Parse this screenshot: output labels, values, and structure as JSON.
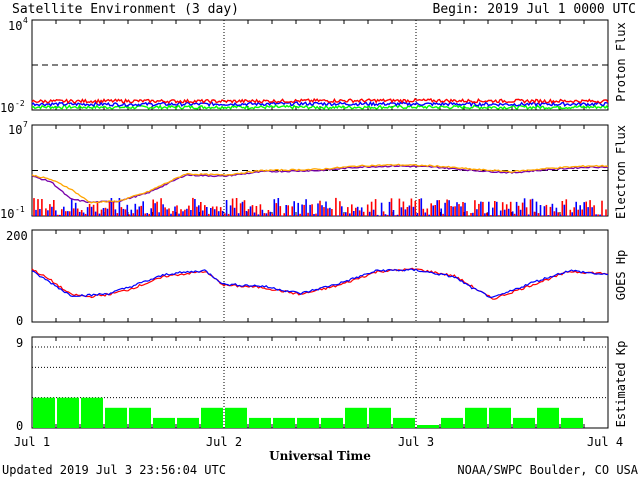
{
  "header": {
    "title": "Satellite Environment (3 day)",
    "begin": "Begin:  2019 Jul 1 0000 UTC"
  },
  "footer": {
    "updated": "Updated 2019 Jul  3 23:56:04 UTC",
    "source": "NOAA/SWPC Boulder, CO USA",
    "xlabel": "Universal Time"
  },
  "colors": {
    "red": "#ff0000",
    "blue": "#0000ff",
    "green": "#00ff00",
    "orange": "#ffa500",
    "purple": "#7700aa"
  },
  "chart_data": [
    {
      "type": "line",
      "ylabel": "Proton Flux",
      "yscale": "log",
      "ylim_exp": [
        -2,
        4
      ],
      "tick_labels": [
        "10",
        "4",
        "10",
        "-2"
      ],
      "threshold_exp": 1,
      "x_days": [
        0,
        3
      ],
      "series": [
        {
          "color": "#ff0000",
          "x": [
            0,
            0.5,
            1.0,
            1.5,
            2.0,
            2.5,
            3.0
          ],
          "y_exp": [
            -1.42,
            -1.4,
            -1.42,
            -1.38,
            -1.37,
            -1.4,
            -1.41
          ]
        },
        {
          "color": "#0000ff",
          "x": [
            0,
            0.5,
            1.0,
            1.5,
            2.0,
            2.5,
            3.0
          ],
          "y_exp": [
            -1.6,
            -1.62,
            -1.6,
            -1.58,
            -1.6,
            -1.62,
            -1.6
          ]
        },
        {
          "color": "#00ff00",
          "x": [
            0,
            0.5,
            1.0,
            1.5,
            2.0,
            2.5,
            3.0
          ],
          "y_exp": [
            -1.8,
            -1.82,
            -1.8,
            -1.82,
            -1.8,
            -1.82,
            -1.8
          ]
        }
      ]
    },
    {
      "type": "line",
      "ylabel": "Electron Flux",
      "yscale": "log",
      "ylim_exp": [
        -1,
        7
      ],
      "tick_labels": [
        "10",
        "7",
        "10",
        "-1"
      ],
      "threshold_exp": 3,
      "x_days": [
        0,
        3
      ],
      "series": [
        {
          "color": "#ffa500",
          "x": [
            0,
            0.1,
            0.2,
            0.3,
            0.45,
            0.6,
            0.8,
            1.0,
            1.2,
            1.5,
            1.7,
            1.9,
            2.1,
            2.3,
            2.5,
            2.7,
            2.9,
            3.0
          ],
          "y_exp": [
            2.6,
            2.2,
            1.4,
            0.2,
            0.3,
            1.1,
            2.7,
            2.6,
            3.0,
            3.1,
            3.4,
            3.5,
            3.4,
            3.1,
            2.9,
            3.2,
            3.4,
            3.4
          ]
        },
        {
          "color": "#7700aa",
          "x": [
            0,
            0.1,
            0.2,
            0.3,
            0.45,
            0.6,
            0.8,
            1.0,
            1.2,
            1.5,
            1.7,
            1.9,
            2.1,
            2.3,
            2.5,
            2.7,
            2.9,
            3.0
          ],
          "y_exp": [
            2.5,
            2.0,
            0.5,
            0.2,
            0.3,
            1.0,
            2.6,
            2.5,
            2.9,
            3.0,
            3.3,
            3.4,
            3.3,
            3.0,
            2.8,
            3.1,
            3.3,
            3.3
          ]
        }
      ],
      "noise_low": {
        "exp_min": -1,
        "exp_max": 0.6,
        "colors": [
          "#0000ff",
          "#ff0000"
        ]
      }
    },
    {
      "type": "line",
      "ylabel": "GOES Hp",
      "ylim": [
        0,
        200
      ],
      "tick_labels": [
        "200",
        "0"
      ],
      "x_days": [
        0,
        3
      ],
      "series": [
        {
          "color": "#ff0000",
          "x": [
            0,
            0.1,
            0.2,
            0.3,
            0.4,
            0.5,
            0.7,
            0.9,
            1.0,
            1.2,
            1.4,
            1.6,
            1.8,
            2.0,
            2.2,
            2.3,
            2.4,
            2.5,
            2.6,
            2.8,
            3.0
          ],
          "y": [
            115,
            90,
            60,
            55,
            60,
            70,
            100,
            110,
            80,
            75,
            60,
            80,
            110,
            115,
            100,
            75,
            50,
            65,
            80,
            110,
            105
          ]
        },
        {
          "color": "#0000ff",
          "x": [
            0,
            0.1,
            0.2,
            0.3,
            0.4,
            0.5,
            0.7,
            0.9,
            1.0,
            1.2,
            1.4,
            1.6,
            1.8,
            2.0,
            2.2,
            2.3,
            2.4,
            2.5,
            2.6,
            2.8,
            3.0
          ],
          "y": [
            110,
            85,
            58,
            58,
            62,
            75,
            104,
            112,
            82,
            78,
            62,
            84,
            112,
            113,
            98,
            72,
            52,
            68,
            85,
            112,
            102
          ]
        }
      ]
    },
    {
      "type": "bar",
      "ylabel": "Estimated Kp",
      "ylim": [
        0,
        9
      ],
      "tick_labels": [
        "9",
        "0"
      ],
      "bar_width_hours": 3,
      "values": [
        3.0,
        3.0,
        3.0,
        2.0,
        2.0,
        1.0,
        1.0,
        2.0,
        2.0,
        1.0,
        1.0,
        1.0,
        1.0,
        2.0,
        2.0,
        1.0,
        0.3,
        1.0,
        2.0,
        2.0,
        1.0,
        2.0,
        1.0,
        0
      ],
      "color": "#00ff00"
    }
  ],
  "x_ticks": [
    "Jul 1",
    "Jul 2",
    "Jul 3",
    "Jul 4"
  ]
}
